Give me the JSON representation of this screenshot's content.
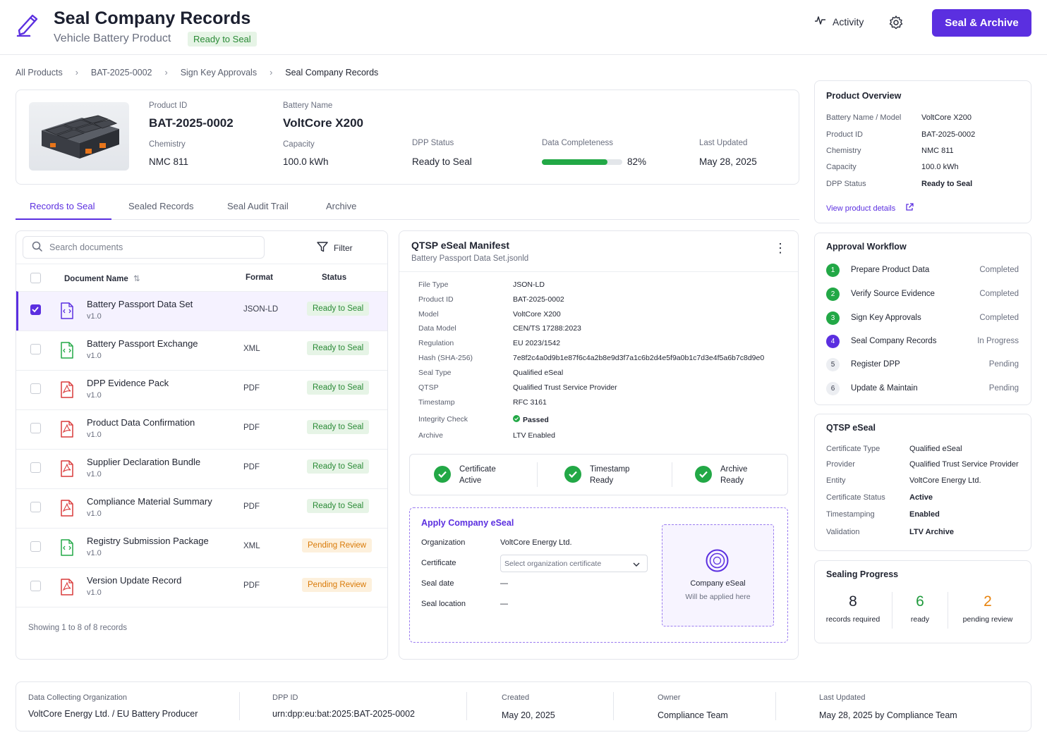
{
  "header": {
    "title": "Seal Company Records",
    "subtitle": "Vehicle Battery Product",
    "badge": "Ready to Seal",
    "activity_label": "Activity",
    "primary_button": "Seal & Archive"
  },
  "breadcrumb": [
    "All Products",
    "BAT-2025-0002",
    "Sign Key Approvals",
    "Seal Company Records"
  ],
  "product": {
    "id_label": "Product ID",
    "id_value": "BAT-2025-0002",
    "name_label": "Battery Name",
    "name_value": "VoltCore X200",
    "chemistry_label": "Chemistry",
    "chemistry_value": "NMC 811",
    "capacity_label": "Capacity",
    "capacity_value": "100.0 kWh",
    "status_label": "DPP Status",
    "status_value": "Ready to Seal",
    "completeness_label": "Data Completeness",
    "completeness_text": "82%",
    "completeness_value": 0.82,
    "updated_label": "Last Updated",
    "updated_value": "May 28, 2025"
  },
  "tabs": [
    "Records to Seal",
    "Sealed Records",
    "Seal Audit Trail",
    "Archive"
  ],
  "documents": {
    "search_placeholder": "Search documents",
    "filter_label": "Filter",
    "col_name": "Document Name",
    "col_format": "Format",
    "col_status": "Status",
    "rows": [
      {
        "name": "Battery Passport Data Set",
        "version": "v1.0",
        "format": "JSON-LD",
        "status": "Ready to Seal",
        "icon": "json",
        "selected": true
      },
      {
        "name": "Battery Passport Exchange",
        "version": "v1.0",
        "format": "XML",
        "status": "Ready to Seal",
        "icon": "xml",
        "selected": false
      },
      {
        "name": "DPP Evidence Pack",
        "version": "v1.0",
        "format": "PDF",
        "status": "Ready to Seal",
        "icon": "pdf",
        "selected": false
      },
      {
        "name": "Product Data Confirmation",
        "version": "v1.0",
        "format": "PDF",
        "status": "Ready to Seal",
        "icon": "pdf",
        "selected": false
      },
      {
        "name": "Supplier Declaration Bundle",
        "version": "v1.0",
        "format": "PDF",
        "status": "Ready to Seal",
        "icon": "pdf",
        "selected": false
      },
      {
        "name": "Compliance Material Summary",
        "version": "v1.0",
        "format": "PDF",
        "status": "Ready to Seal",
        "icon": "pdf",
        "selected": false
      },
      {
        "name": "Registry Submission Package",
        "version": "v1.0",
        "format": "XML",
        "status": "Pending Review",
        "icon": "xml",
        "selected": false
      },
      {
        "name": "Version Update Record",
        "version": "v1.0",
        "format": "PDF",
        "status": "Pending Review",
        "icon": "pdf",
        "selected": false
      }
    ],
    "footer": "Showing 1 to 8 of 8 records"
  },
  "manifest": {
    "title": "QTSP eSeal Manifest",
    "subtitle": "Battery Passport Data Set.jsonld",
    "fields": [
      {
        "label": "File Type",
        "value": "JSON-LD"
      },
      {
        "label": "Product ID",
        "value": "BAT-2025-0002"
      },
      {
        "label": "Model",
        "value": "VoltCore X200"
      },
      {
        "label": "Data Model",
        "value": "CEN/TS 17288:2023"
      },
      {
        "label": "Regulation",
        "value": "EU 2023/1542"
      },
      {
        "label": "Hash (SHA-256)",
        "value": "7e8f2c4a0d9b1e87f6c4a2b8e9d3f7a1c6b2d4e5f9a0b1c7d3e4f5a6b7c8d9e0"
      },
      {
        "label": "Seal Type",
        "value": "Qualified eSeal"
      },
      {
        "label": "QTSP",
        "value": "Qualified Trust Service Provider"
      },
      {
        "label": "Timestamp",
        "value": "RFC 3161"
      },
      {
        "label": "Integrity Check",
        "value": "Passed"
      },
      {
        "label": "Archive",
        "value": "LTV Enabled"
      }
    ],
    "checks": [
      {
        "title": "Certificate",
        "status": "Active"
      },
      {
        "title": "Timestamp",
        "status": "Ready"
      },
      {
        "title": "Archive",
        "status": "Ready"
      }
    ],
    "apply": {
      "title": "Apply Company eSeal",
      "org_label": "Organization",
      "org_value": "VoltCore Energy Ltd.",
      "cert_label": "Certificate",
      "cert_placeholder": "Select organization certificate",
      "date_label": "Seal date",
      "date_value": "—",
      "location_label": "Seal location",
      "location_value": "—",
      "seal_title": "Company eSeal",
      "seal_sub": "Will be applied here"
    }
  },
  "overview": {
    "title": "Product Overview",
    "rows": [
      {
        "label": "Battery Name / Model",
        "value": "VoltCore X200"
      },
      {
        "label": "Product ID",
        "value": "BAT-2025-0002"
      },
      {
        "label": "Chemistry",
        "value": "NMC 811"
      },
      {
        "label": "Capacity",
        "value": "100.0 kWh"
      },
      {
        "label": "DPP Status",
        "value": "Ready to Seal"
      }
    ],
    "link": "View product details"
  },
  "workflow": {
    "title": "Approval Workflow",
    "steps": [
      {
        "num": "1",
        "name": "Prepare Product Data",
        "status": "Completed"
      },
      {
        "num": "2",
        "name": "Verify Source Evidence",
        "status": "Completed"
      },
      {
        "num": "3",
        "name": "Sign Key Approvals",
        "status": "Completed"
      },
      {
        "num": "4",
        "name": "Seal Company Records",
        "status": "In Progress"
      },
      {
        "num": "5",
        "name": "Register DPP",
        "status": "Pending"
      },
      {
        "num": "6",
        "name": "Update & Maintain",
        "status": "Pending"
      }
    ]
  },
  "qtsp": {
    "title": "QTSP eSeal",
    "rows": [
      {
        "label": "Certificate Type",
        "value": "Qualified eSeal"
      },
      {
        "label": "Provider",
        "value": "Qualified Trust Service Provider"
      },
      {
        "label": "Entity",
        "value": "VoltCore Energy Ltd."
      },
      {
        "label": "Certificate Status",
        "value": "Active"
      },
      {
        "label": "Timestamping",
        "value": "Enabled"
      },
      {
        "label": "Validation",
        "value": "LTV Archive"
      }
    ]
  },
  "progress": {
    "title": "Sealing Progress",
    "required_value": "8",
    "required_label": "records required",
    "ready_value": "6",
    "ready_label": "ready",
    "pending_value": "2",
    "pending_label": "pending review"
  },
  "footer": {
    "org_label": "Data Collecting Organization",
    "org_value": "VoltCore Energy Ltd. / EU Battery Producer",
    "dpp_label": "DPP ID",
    "dpp_value": "urn:dpp:eu:bat:2025:BAT-2025-0002",
    "created_label": "Created",
    "created_value": "May 20, 2025",
    "owner_label": "Owner",
    "owner_value": "Compliance Team",
    "updated_label": "Last Updated",
    "updated_value": "May 28, 2025 by Compliance Team"
  },
  "colors": {
    "accent": "#5b2fe0",
    "success": "#1f9a3c",
    "warning": "#e8840f"
  }
}
